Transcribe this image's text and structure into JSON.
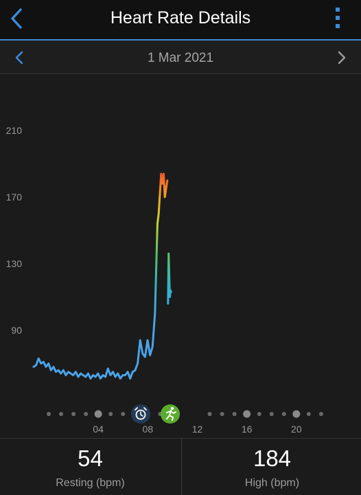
{
  "header": {
    "title": "Heart Rate Details"
  },
  "date_nav": {
    "date": "1 Mar 2021"
  },
  "colors": {
    "accent": "#3a8bd6",
    "line_low": "#4aa3e8",
    "activity_icon_bg": "#5aac2e",
    "alarm_icon_bg": "#243b58"
  },
  "icons": {
    "back": "chevron-left-icon",
    "more": "vertical-dots-icon",
    "alarm": "alarm-clock-icon",
    "activity": "running-icon"
  },
  "chart_data": {
    "type": "line",
    "title": "",
    "xlabel": "",
    "ylabel": "",
    "y_ticks": [
      "210",
      "170",
      "130",
      "90"
    ],
    "ylim": [
      55,
      225
    ],
    "x_ticks": [
      "04",
      "08",
      "12",
      "16",
      "20"
    ],
    "xlim": [
      0,
      24
    ],
    "grid": false,
    "series": [
      {
        "x": [
          0.0,
          0.2,
          0.4,
          0.6,
          0.8,
          1.0,
          1.2,
          1.4,
          1.6,
          1.8,
          2.0,
          2.2,
          2.4,
          2.6,
          2.8,
          3.0,
          3.2,
          3.4,
          3.6,
          3.8,
          4.0,
          4.2,
          4.4,
          4.6,
          4.8,
          5.0,
          5.2,
          5.4,
          5.6,
          5.8,
          6.0,
          6.2,
          6.4,
          6.6,
          6.8,
          7.0,
          7.2,
          7.4,
          7.6,
          7.8,
          8.0,
          8.2,
          8.4,
          8.6,
          8.8,
          9.0,
          9.2,
          9.4,
          9.6,
          9.8,
          10.0,
          10.1,
          10.2,
          10.25,
          10.3,
          10.4,
          10.5,
          10.6,
          10.7,
          10.8,
          10.85,
          10.9,
          11.0,
          11.05,
          11.1
        ],
        "y": [
          68,
          69,
          73,
          70,
          71,
          68,
          70,
          66,
          68,
          65,
          66,
          64,
          66,
          63,
          65,
          64,
          63,
          65,
          62,
          64,
          63,
          62,
          64,
          61,
          63,
          62,
          64,
          61,
          63,
          62,
          67,
          63,
          65,
          62,
          64,
          61,
          63,
          63,
          65,
          61,
          65,
          66,
          70,
          84,
          76,
          74,
          84,
          75,
          80,
          100,
          154,
          160,
          172,
          178,
          184,
          178,
          184,
          170,
          175,
          180,
          106,
          136,
          110,
          114,
          113
        ]
      }
    ],
    "events": [
      {
        "type": "alarm",
        "x": 8.0
      },
      {
        "type": "activity",
        "x": 11.5
      }
    ]
  },
  "stats": {
    "resting": {
      "value": "54",
      "label": "Resting (bpm)"
    },
    "high": {
      "value": "184",
      "label": "High (bpm)"
    }
  }
}
